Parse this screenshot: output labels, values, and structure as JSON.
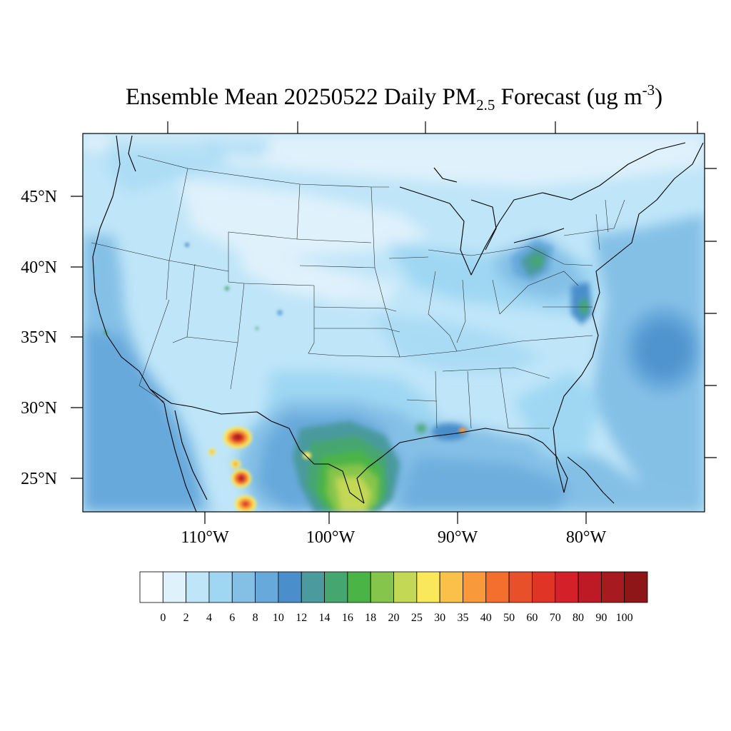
{
  "title": {
    "prefix": "Ensemble Mean 20250522 Daily PM",
    "subscript": "2.5",
    "middle": " Forecast (ug m",
    "superscript": "-3",
    "suffix": ")"
  },
  "latitude_labels": [
    "45°N",
    "40°N",
    "35°N",
    "30°N",
    "25°N"
  ],
  "longitude_labels": [
    "110°W",
    "100°W",
    "90°W",
    "80°W"
  ],
  "colorbar": {
    "labels": [
      "0",
      "2",
      "4",
      "6",
      "8",
      "10",
      "12",
      "14",
      "16",
      "18",
      "20",
      "25",
      "30",
      "35",
      "40",
      "50",
      "60",
      "70",
      "80",
      "90",
      "100"
    ],
    "colors": [
      "#ffffff",
      "#dff1fb",
      "#bfe5f8",
      "#9fd7f3",
      "#84c0e6",
      "#68a9dc",
      "#4a8ecb",
      "#4a9a9e",
      "#46a66f",
      "#4bb446",
      "#86c54b",
      "#c3d855",
      "#f8e85a",
      "#f9c04a",
      "#f89a3c",
      "#f46e2e",
      "#e8502a",
      "#df3426",
      "#d32029",
      "#bd1a25",
      "#a71a20",
      "#8e1518"
    ]
  },
  "map": {
    "background_color": "#bfe5f8",
    "hotspots": [
      {
        "region": "northern Mexico (Sierra Madre)",
        "peak": 90
      },
      {
        "region": "northeastern Mexico / south Texas",
        "peak": 25
      },
      {
        "region": "Lake Erie / Ohio",
        "peak": 14
      },
      {
        "region": "Chesapeake Bay",
        "peak": 16
      },
      {
        "region": "Mississippi delta",
        "peak": 40
      }
    ]
  }
}
